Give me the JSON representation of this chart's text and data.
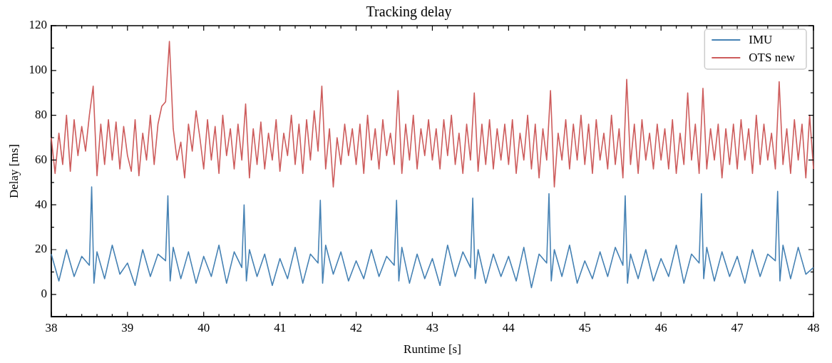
{
  "chart_data": {
    "type": "line",
    "title": "Tracking delay",
    "xlabel": "Runtime [s]",
    "ylabel": "Delay [ms]",
    "xlim": [
      38,
      48
    ],
    "ylim": [
      -10,
      120
    ],
    "xticks": [
      38,
      {
        "value": 38.2,
        "label": null
      },
      {
        "value": 38.4,
        "label": null
      },
      {
        "value": 38.6,
        "label": null
      },
      {
        "value": 38.8,
        "label": null
      },
      39,
      {
        "value": 39.2,
        "label": null
      },
      {
        "value": 39.4,
        "label": null
      },
      {
        "value": 39.6,
        "label": null
      },
      {
        "value": 39.8,
        "label": null
      },
      40,
      {
        "value": 40.2,
        "label": null
      },
      {
        "value": 40.4,
        "label": null
      },
      {
        "value": 40.6,
        "label": null
      },
      {
        "value": 40.8,
        "label": null
      },
      41,
      {
        "value": 41.2,
        "label": null
      },
      {
        "value": 41.4,
        "label": null
      },
      {
        "value": 41.6,
        "label": null
      },
      {
        "value": 41.8,
        "label": null
      },
      42,
      {
        "value": 42.2,
        "label": null
      },
      {
        "value": 42.4,
        "label": null
      },
      {
        "value": 42.6,
        "label": null
      },
      {
        "value": 42.8,
        "label": null
      },
      43,
      {
        "value": 43.2,
        "label": null
      },
      {
        "value": 43.4,
        "label": null
      },
      {
        "value": 43.6,
        "label": null
      },
      {
        "value": 43.8,
        "label": null
      },
      44,
      {
        "value": 44.2,
        "label": null
      },
      {
        "value": 44.4,
        "label": null
      },
      {
        "value": 44.6,
        "label": null
      },
      {
        "value": 44.8,
        "label": null
      },
      45,
      {
        "value": 45.2,
        "label": null
      },
      {
        "value": 45.4,
        "label": null
      },
      {
        "value": 45.6,
        "label": null
      },
      {
        "value": 45.8,
        "label": null
      },
      46,
      {
        "value": 46.2,
        "label": null
      },
      {
        "value": 46.4,
        "label": null
      },
      {
        "value": 46.6,
        "label": null
      },
      {
        "value": 46.8,
        "label": null
      },
      47,
      {
        "value": 47.2,
        "label": null
      },
      {
        "value": 47.4,
        "label": null
      },
      {
        "value": 47.6,
        "label": null
      },
      {
        "value": 47.8,
        "label": null
      },
      48
    ],
    "yticks": [
      {
        "value": -10,
        "label": null
      },
      0,
      {
        "value": 10,
        "label": null
      },
      20,
      {
        "value": 30,
        "label": null
      },
      40,
      {
        "value": 50,
        "label": null
      },
      60,
      {
        "value": 70,
        "label": null
      },
      80,
      {
        "value": 90,
        "label": null
      },
      100,
      {
        "value": 110,
        "label": null
      },
      120
    ],
    "legend": "top right",
    "grid": false,
    "marker": "none",
    "line_style": "solid",
    "series": [
      {
        "name": "IMU",
        "color": "#4682b4",
        "x": [
          38.0,
          38.1,
          38.2,
          38.3,
          38.4,
          38.5,
          38.53,
          38.56,
          38.6,
          38.7,
          38.8,
          38.9,
          39.0,
          39.1,
          39.2,
          39.3,
          39.4,
          39.5,
          39.53,
          39.56,
          39.6,
          39.7,
          39.8,
          39.9,
          40.0,
          40.1,
          40.2,
          40.3,
          40.4,
          40.5,
          40.53,
          40.56,
          40.6,
          40.7,
          40.8,
          40.9,
          41.0,
          41.1,
          41.2,
          41.3,
          41.4,
          41.5,
          41.53,
          41.56,
          41.6,
          41.7,
          41.8,
          41.9,
          42.0,
          42.1,
          42.2,
          42.3,
          42.4,
          42.5,
          42.53,
          42.56,
          42.6,
          42.7,
          42.8,
          42.9,
          43.0,
          43.1,
          43.2,
          43.3,
          43.4,
          43.5,
          43.53,
          43.56,
          43.6,
          43.7,
          43.8,
          43.9,
          44.0,
          44.1,
          44.2,
          44.3,
          44.4,
          44.5,
          44.53,
          44.56,
          44.6,
          44.7,
          44.8,
          44.9,
          45.0,
          45.1,
          45.2,
          45.3,
          45.4,
          45.5,
          45.53,
          45.56,
          45.6,
          45.7,
          45.8,
          45.9,
          46.0,
          46.1,
          46.2,
          46.3,
          46.4,
          46.5,
          46.53,
          46.56,
          46.6,
          46.7,
          46.8,
          46.9,
          47.0,
          47.1,
          47.2,
          47.3,
          47.4,
          47.5,
          47.53,
          47.56,
          47.6,
          47.7,
          47.8,
          47.9,
          48.0
        ],
        "values": [
          18,
          6,
          20,
          8,
          17,
          13,
          48,
          5,
          19,
          7,
          22,
          9,
          14,
          4,
          20,
          8,
          18,
          15,
          44,
          6,
          21,
          7,
          19,
          5,
          17,
          8,
          22,
          5,
          19,
          12,
          40,
          6,
          20,
          8,
          18,
          4,
          16,
          7,
          21,
          5,
          18,
          14,
          42,
          5,
          22,
          9,
          19,
          6,
          15,
          7,
          20,
          8,
          17,
          13,
          42,
          6,
          21,
          5,
          18,
          7,
          16,
          4,
          22,
          8,
          19,
          12,
          43,
          7,
          20,
          5,
          18,
          8,
          17,
          6,
          21,
          3,
          18,
          14,
          45,
          6,
          20,
          8,
          22,
          5,
          15,
          7,
          19,
          8,
          21,
          13,
          44,
          5,
          18,
          7,
          20,
          6,
          16,
          8,
          22,
          5,
          18,
          14,
          45,
          7,
          21,
          6,
          19,
          8,
          17,
          5,
          20,
          8,
          18,
          15,
          46,
          6,
          22,
          7,
          21,
          9,
          12
        ]
      },
      {
        "name": "OTS new",
        "color": "#cd5c5c",
        "x": [
          38.0,
          38.05,
          38.1,
          38.15,
          38.2,
          38.25,
          38.3,
          38.35,
          38.4,
          38.45,
          38.5,
          38.55,
          38.6,
          38.65,
          38.7,
          38.75,
          38.8,
          38.85,
          38.9,
          38.95,
          39.0,
          39.05,
          39.1,
          39.15,
          39.2,
          39.25,
          39.3,
          39.35,
          39.4,
          39.45,
          39.5,
          39.55,
          39.6,
          39.65,
          39.7,
          39.75,
          39.8,
          39.85,
          39.9,
          39.95,
          40.0,
          40.05,
          40.1,
          40.15,
          40.2,
          40.25,
          40.3,
          40.35,
          40.4,
          40.45,
          40.5,
          40.55,
          40.6,
          40.65,
          40.7,
          40.75,
          40.8,
          40.85,
          40.9,
          40.95,
          41.0,
          41.05,
          41.1,
          41.15,
          41.2,
          41.25,
          41.3,
          41.35,
          41.4,
          41.45,
          41.5,
          41.55,
          41.6,
          41.65,
          41.7,
          41.75,
          41.8,
          41.85,
          41.9,
          41.95,
          42.0,
          42.05,
          42.1,
          42.15,
          42.2,
          42.25,
          42.3,
          42.35,
          42.4,
          42.45,
          42.5,
          42.55,
          42.6,
          42.65,
          42.7,
          42.75,
          42.8,
          42.85,
          42.9,
          42.95,
          43.0,
          43.05,
          43.1,
          43.15,
          43.2,
          43.25,
          43.3,
          43.35,
          43.4,
          43.45,
          43.5,
          43.55,
          43.6,
          43.65,
          43.7,
          43.75,
          43.8,
          43.85,
          43.9,
          43.95,
          44.0,
          44.05,
          44.1,
          44.15,
          44.2,
          44.25,
          44.3,
          44.35,
          44.4,
          44.45,
          44.5,
          44.55,
          44.6,
          44.65,
          44.7,
          44.75,
          44.8,
          44.85,
          44.9,
          44.95,
          45.0,
          45.05,
          45.1,
          45.15,
          45.2,
          45.25,
          45.3,
          45.35,
          45.4,
          45.45,
          45.5,
          45.55,
          45.6,
          45.65,
          45.7,
          45.75,
          45.8,
          45.85,
          45.9,
          45.95,
          46.0,
          46.05,
          46.1,
          46.15,
          46.2,
          46.25,
          46.3,
          46.35,
          46.4,
          46.45,
          46.5,
          46.55,
          46.6,
          46.65,
          46.7,
          46.75,
          46.8,
          46.85,
          46.9,
          46.95,
          47.0,
          47.05,
          47.1,
          47.15,
          47.2,
          47.25,
          47.3,
          47.35,
          47.4,
          47.45,
          47.5,
          47.55,
          47.6,
          47.65,
          47.7,
          47.75,
          47.8,
          47.85,
          47.9,
          47.95,
          48.0
        ],
        "values": [
          70,
          54,
          72,
          58,
          80,
          55,
          78,
          62,
          75,
          64,
          80,
          93,
          53,
          76,
          58,
          78,
          60,
          77,
          56,
          75,
          62,
          55,
          78,
          53,
          72,
          60,
          80,
          58,
          76,
          84,
          86,
          113,
          74,
          60,
          68,
          52,
          76,
          64,
          82,
          70,
          56,
          78,
          60,
          75,
          54,
          80,
          62,
          74,
          56,
          76,
          60,
          85,
          52,
          74,
          58,
          77,
          56,
          72,
          60,
          78,
          55,
          72,
          62,
          80,
          58,
          76,
          54,
          78,
          60,
          82,
          64,
          93,
          56,
          74,
          48,
          70,
          58,
          76,
          62,
          74,
          58,
          76,
          54,
          80,
          60,
          74,
          56,
          78,
          62,
          72,
          58,
          91,
          54,
          76,
          60,
          80,
          56,
          74,
          62,
          78,
          60,
          74,
          56,
          78,
          62,
          80,
          58,
          72,
          54,
          76,
          60,
          90,
          55,
          76,
          58,
          78,
          56,
          74,
          60,
          76,
          58,
          78,
          54,
          72,
          60,
          80,
          56,
          76,
          52,
          74,
          60,
          91,
          48,
          72,
          60,
          78,
          56,
          76,
          60,
          80,
          58,
          76,
          54,
          78,
          60,
          72,
          56,
          80,
          58,
          74,
          52,
          96,
          58,
          76,
          54,
          78,
          60,
          72,
          56,
          76,
          60,
          74,
          56,
          78,
          54,
          72,
          58,
          90,
          60,
          76,
          54,
          92,
          56,
          74,
          60,
          76,
          52,
          74,
          58,
          76,
          56,
          78,
          60,
          74,
          54,
          80,
          58,
          76,
          60,
          72,
          56,
          95,
          58,
          74,
          54,
          78,
          60,
          76,
          52,
          80,
          56
        ]
      }
    ]
  }
}
